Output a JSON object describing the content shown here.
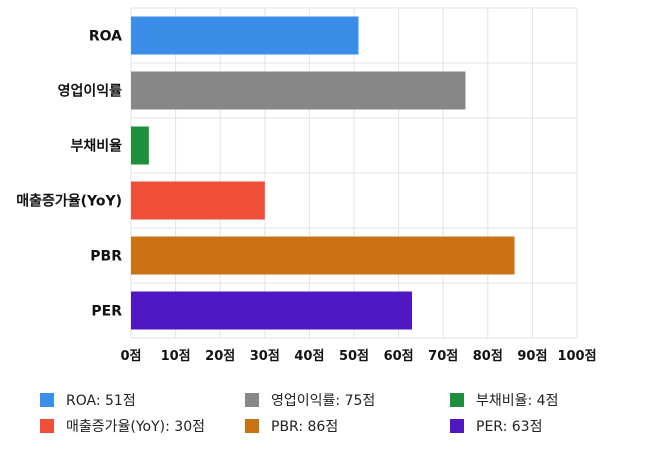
{
  "chart_data": {
    "type": "bar",
    "orientation": "horizontal",
    "categories": [
      "ROA",
      "영업이익률",
      "부채비율",
      "매출증가율(YoY)",
      "PBR",
      "PER"
    ],
    "values": [
      51,
      75,
      4,
      30,
      86,
      63
    ],
    "colors": [
      "#3b8ee8",
      "#878787",
      "#1e8f3a",
      "#ef4f37",
      "#cb7314",
      "#4e17c2"
    ],
    "xlim": [
      0,
      100
    ],
    "x_ticks": [
      "0점",
      "10점",
      "20점",
      "30점",
      "40점",
      "50점",
      "60점",
      "70점",
      "80점",
      "90점",
      "100점"
    ],
    "grid": true,
    "legend_position": "bottom",
    "legend": [
      "ROA: 51점",
      "영업이익률: 75점",
      "부채비율: 4점",
      "매출증가율(YoY): 30점",
      "PBR: 86점",
      "PER: 63점"
    ]
  }
}
